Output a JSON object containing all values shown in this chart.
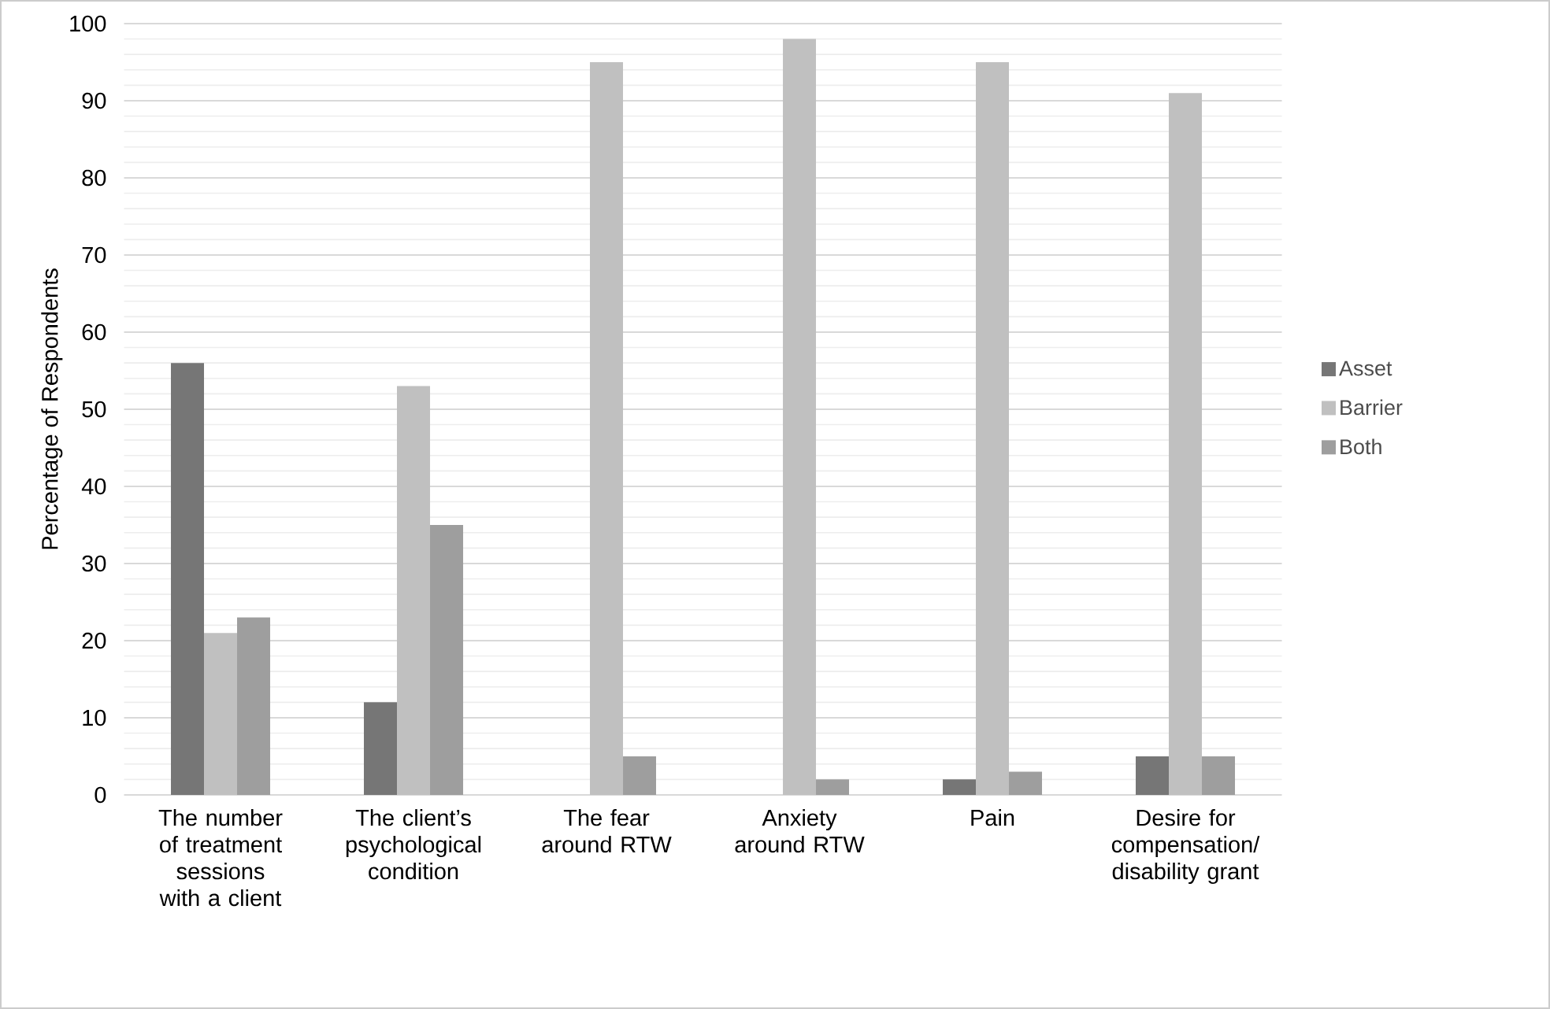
{
  "chart_data": {
    "type": "bar",
    "ylabel": "Percentage of Respondents",
    "categories": [
      "The number of treatment sessions with a client",
      "The client’s psychological condition",
      "The fear around RTW",
      "Anxiety around RTW",
      "Pain",
      "Desire for compensation/ disability grant"
    ],
    "series": [
      {
        "name": "Asset",
        "color": "#767676",
        "values": [
          56,
          12,
          0,
          0,
          2,
          5
        ]
      },
      {
        "name": "Barrier",
        "color": "#c0c0c0",
        "values": [
          21,
          53,
          95,
          98,
          95,
          91
        ]
      },
      {
        "name": "Both",
        "color": "#9e9e9e",
        "values": [
          23,
          35,
          5,
          2,
          3,
          5
        ]
      }
    ],
    "ylim": [
      0,
      100
    ],
    "yticks": [
      0,
      10,
      20,
      30,
      40,
      50,
      60,
      70,
      80,
      90,
      100
    ],
    "grid": "y",
    "legend": "right"
  }
}
